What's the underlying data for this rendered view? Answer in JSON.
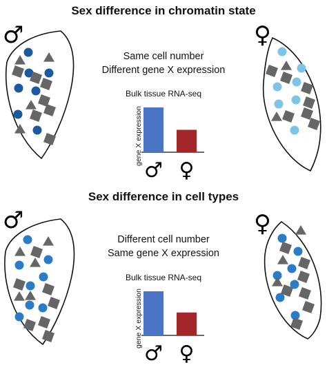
{
  "panels": [
    {
      "title": "Sex difference in chromatin state",
      "subtitle_line1": "Same cell number",
      "subtitle_line2": "Different gene X expression",
      "chart_title": "Bulk tissue RNA-seq",
      "chart_data": {
        "type": "bar",
        "categories": [
          "♂",
          "♀"
        ],
        "values": [
          1.0,
          0.5
        ],
        "ylabel": "gene X expression",
        "colors": [
          "#4a74c4",
          "#a3262b"
        ]
      },
      "male_symbol": "♂",
      "female_symbol": "♀",
      "male_cell_color": "#1c5aa0",
      "female_cell_color": "#7ec4e8"
    },
    {
      "title": "Sex difference in cell types",
      "subtitle_line1": "Different cell number",
      "subtitle_line2": "Same gene X expression",
      "chart_title": "Bulk tissue RNA-seq",
      "chart_data": {
        "type": "bar",
        "categories": [
          "♂",
          "♀"
        ],
        "values": [
          1.0,
          0.52
        ],
        "ylabel": "gene X expression",
        "colors": [
          "#4a74c4",
          "#a3262b"
        ]
      },
      "male_symbol": "♂",
      "female_symbol": "♀",
      "male_cell_color": "#2a7cc6",
      "female_cell_color": "#2a7cc6"
    }
  ]
}
